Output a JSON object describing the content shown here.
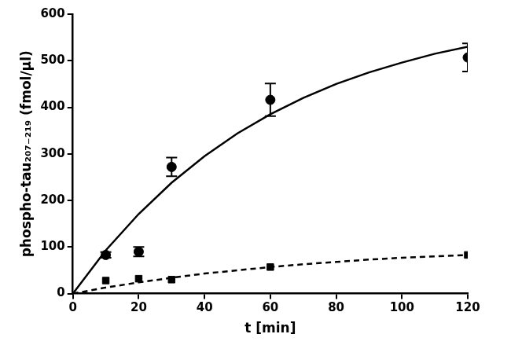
{
  "chart_data": {
    "type": "scatter",
    "x_label": "t [min]",
    "y_label": "phospho-tau₂₀₇₋₂₁₉ (fmol/µl)",
    "xlim": [
      0,
      120
    ],
    "xticks": [
      0,
      20,
      40,
      60,
      80,
      100,
      120
    ],
    "ylim": [
      0,
      600
    ],
    "yticks": [
      0,
      100,
      200,
      300,
      400,
      500,
      600
    ],
    "grid": false,
    "series": [
      {
        "type": "scatter",
        "marker": "circle",
        "color": "#000000",
        "x": [
          10,
          20,
          30,
          60,
          120
        ],
        "values": [
          83,
          90,
          272,
          416,
          507
        ],
        "errors": [
          6,
          10,
          20,
          35,
          30
        ]
      },
      {
        "type": "scatter",
        "marker": "square",
        "color": "#000000",
        "x": [
          10,
          20,
          30,
          60,
          120
        ],
        "values": [
          28,
          32,
          30,
          57,
          83
        ]
      },
      {
        "type": "line",
        "line_style": "solid",
        "color": "#000000",
        "x": [
          0,
          10,
          20,
          30,
          40,
          50,
          60,
          70,
          80,
          90,
          100,
          110,
          120
        ],
        "values": [
          0,
          93,
          171,
          238,
          295,
          344,
          385,
          420,
          450,
          475,
          496,
          515,
          530
        ]
      },
      {
        "type": "line",
        "line_style": "dashed",
        "color": "#000000",
        "x": [
          0,
          10,
          20,
          30,
          40,
          50,
          60,
          70,
          80,
          90,
          100,
          110,
          120
        ],
        "values": [
          0,
          13,
          24,
          34,
          43,
          50,
          57,
          63,
          68,
          73,
          77,
          80,
          83
        ]
      }
    ]
  }
}
